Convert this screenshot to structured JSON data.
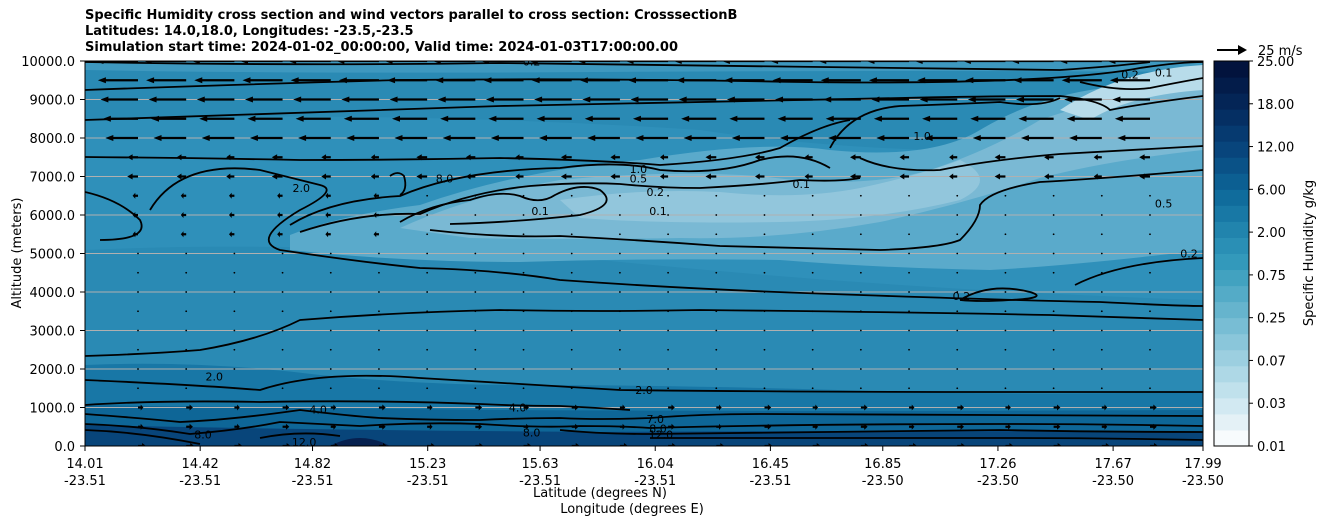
{
  "chart_data": {
    "type": "contour",
    "title_lines": [
      "Specific Humidity cross section and wind vectors parallel to cross section: CrosssectionB",
      "Latitudes: 14.0,18.0, Longitudes: -23.5,-23.5",
      "Simulation start time: 2024-01-02_00:00:00, Valid time: 2024-01-03T17:00:00.00"
    ],
    "ylabel": "Altitude (meters)",
    "xlabel_lat": "Latitude (degrees N)",
    "xlabel_lon": "Longitude (degrees E)",
    "ylim": [
      0,
      10000
    ],
    "yticks": [
      "0.0",
      "1000.0",
      "2000.0",
      "3000.0",
      "4000.0",
      "5000.0",
      "6000.0",
      "7000.0",
      "8000.0",
      "9000.0",
      "10000.0"
    ],
    "xticks_lat": [
      "14.01",
      "14.42",
      "14.82",
      "15.23",
      "15.63",
      "16.04",
      "16.45",
      "16.85",
      "17.26",
      "17.67",
      "17.99"
    ],
    "xticks_lon": [
      "-23.51",
      "-23.51",
      "-23.51",
      "-23.51",
      "-23.51",
      "-23.51",
      "-23.51",
      "-23.50",
      "-23.50",
      "-23.50",
      "-23.50"
    ],
    "colorbar": {
      "label": "Specific Humidity g/kg",
      "ticks": [
        "0.01",
        "0.03",
        "0.07",
        "0.25",
        "0.75",
        "2.00",
        "6.00",
        "12.00",
        "18.00",
        "25.00"
      ]
    },
    "wind_key": {
      "label": "25 m/s"
    },
    "contour_labels": [
      {
        "text": "0.2",
        "lat": 15.6,
        "alt": 9990
      },
      {
        "text": "0.1",
        "lat": 17.85,
        "alt": 9700
      },
      {
        "text": "0.2",
        "lat": 17.73,
        "alt": 9650
      },
      {
        "text": "1.0",
        "lat": 16.99,
        "alt": 8050
      },
      {
        "text": "1.0",
        "lat": 15.98,
        "alt": 7200
      },
      {
        "text": "0.5",
        "lat": 15.98,
        "alt": 6950
      },
      {
        "text": "0.2",
        "lat": 16.04,
        "alt": 6600
      },
      {
        "text": "0.1",
        "lat": 15.63,
        "alt": 6100
      },
      {
        "text": "0.1",
        "lat": 16.05,
        "alt": 6100
      },
      {
        "text": "0.1",
        "lat": 16.56,
        "alt": 6800
      },
      {
        "text": "0.5",
        "lat": 17.85,
        "alt": 6300
      },
      {
        "text": "0.2",
        "lat": 17.94,
        "alt": 5000
      },
      {
        "text": "0.2",
        "lat": 17.13,
        "alt": 3900
      },
      {
        "text": "2.0",
        "lat": 14.78,
        "alt": 6700
      },
      {
        "text": "8.0",
        "lat": 15.29,
        "alt": 6950
      },
      {
        "text": "2.0",
        "lat": 14.47,
        "alt": 1800
      },
      {
        "text": "2.0",
        "lat": 16.0,
        "alt": 1450
      },
      {
        "text": "4.0",
        "lat": 14.84,
        "alt": 950
      },
      {
        "text": "4.0",
        "lat": 15.55,
        "alt": 1000
      },
      {
        "text": "7.0",
        "lat": 16.04,
        "alt": 700
      },
      {
        "text": "8.0",
        "lat": 16.05,
        "alt": 450
      },
      {
        "text": "12.0",
        "lat": 16.06,
        "alt": 300
      },
      {
        "text": "8.0",
        "lat": 14.43,
        "alt": 300
      },
      {
        "text": "12.0",
        "lat": 14.79,
        "alt": 100
      },
      {
        "text": "8.0",
        "lat": 15.6,
        "alt": 350
      }
    ]
  }
}
